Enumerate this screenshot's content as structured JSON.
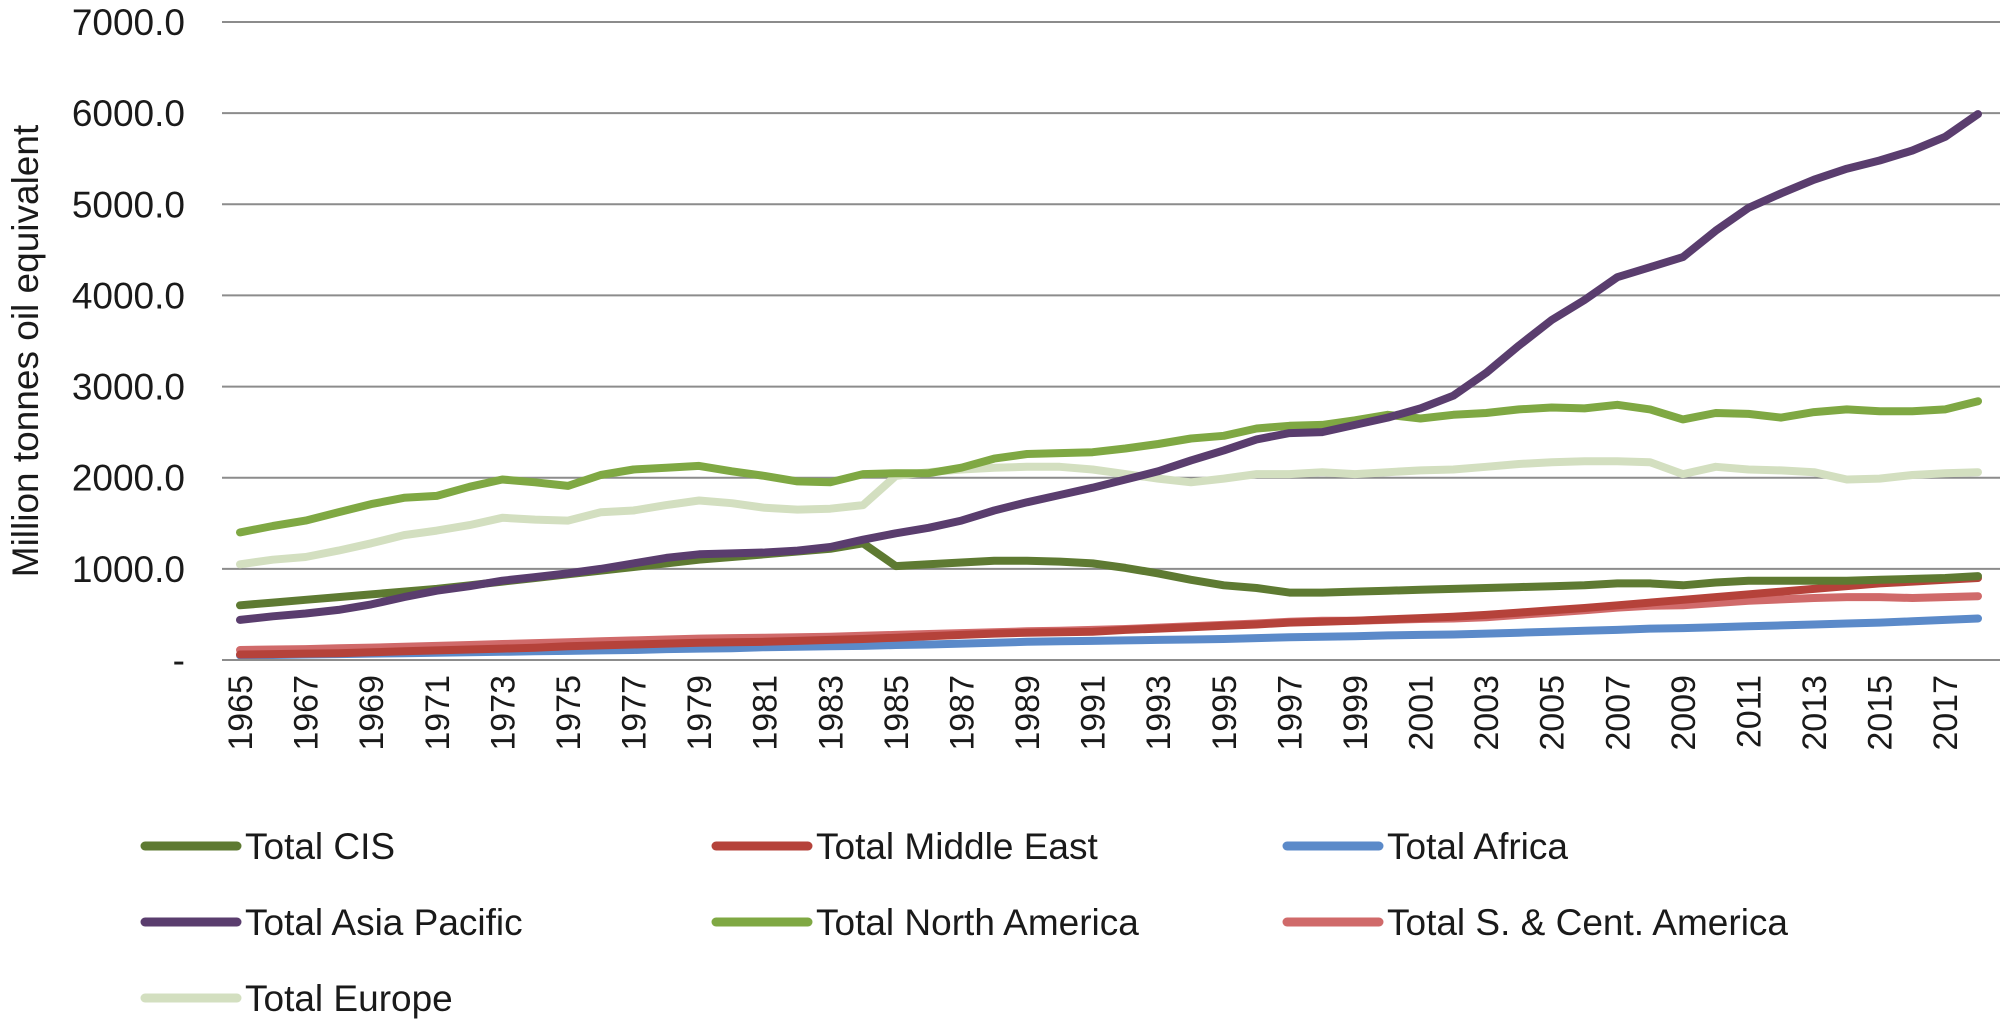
{
  "chart_data": {
    "type": "line",
    "xlabel": "",
    "ylabel": "Million tonnes oil equivalent",
    "ylim": [
      0,
      7000
    ],
    "y_ticks": [
      {
        "value": 0,
        "label": "-"
      },
      {
        "value": 1000,
        "label": "1000.0"
      },
      {
        "value": 2000,
        "label": "2000.0"
      },
      {
        "value": 3000,
        "label": "3000.0"
      },
      {
        "value": 4000,
        "label": "4000.0"
      },
      {
        "value": 5000,
        "label": "5000.0"
      },
      {
        "value": 6000,
        "label": "6000.0"
      },
      {
        "value": 7000,
        "label": "7000.0"
      }
    ],
    "x_tick_labels": [
      "1965",
      "1967",
      "1969",
      "1971",
      "1973",
      "1975",
      "1977",
      "1979",
      "1981",
      "1983",
      "1985",
      "1987",
      "1989",
      "1991",
      "1993",
      "1995",
      "1997",
      "1999",
      "2001",
      "2003",
      "2005",
      "2007",
      "2009",
      "2011",
      "2013",
      "2015",
      "2017"
    ],
    "grid": "horizontal",
    "legend_position": "bottom",
    "x": [
      1965,
      1966,
      1967,
      1968,
      1969,
      1970,
      1971,
      1972,
      1973,
      1974,
      1975,
      1976,
      1977,
      1978,
      1979,
      1980,
      1981,
      1982,
      1983,
      1984,
      1985,
      1986,
      1987,
      1988,
      1989,
      1990,
      1991,
      1992,
      1993,
      1994,
      1995,
      1996,
      1997,
      1998,
      1999,
      2000,
      2001,
      2002,
      2003,
      2004,
      2005,
      2006,
      2007,
      2008,
      2009,
      2010,
      2011,
      2012,
      2013,
      2014,
      2015,
      2016,
      2017,
      2018
    ],
    "series": [
      {
        "name": "Total CIS",
        "color": "#5e7a32",
        "values": [
          600,
          630,
          660,
          690,
          720,
          750,
          780,
          820,
          860,
          900,
          940,
          980,
          1020,
          1060,
          1100,
          1130,
          1160,
          1190,
          1220,
          1280,
          1030,
          1050,
          1070,
          1090,
          1090,
          1080,
          1060,
          1010,
          950,
          880,
          820,
          790,
          740,
          740,
          750,
          760,
          770,
          780,
          790,
          800,
          810,
          820,
          840,
          840,
          820,
          850,
          870,
          870,
          870,
          870,
          880,
          890,
          900,
          920
        ]
      },
      {
        "name": "Total Middle East",
        "color": "#b5423a",
        "values": [
          60,
          65,
          70,
          75,
          85,
          95,
          105,
          115,
          125,
          135,
          150,
          160,
          170,
          180,
          190,
          195,
          200,
          210,
          220,
          230,
          245,
          260,
          275,
          290,
          300,
          305,
          310,
          330,
          345,
          360,
          375,
          390,
          410,
          420,
          430,
          445,
          460,
          475,
          495,
          520,
          545,
          570,
          600,
          630,
          660,
          690,
          720,
          750,
          780,
          810,
          840,
          860,
          880,
          900
        ]
      },
      {
        "name": "Total Africa",
        "color": "#5b8ac9",
        "values": [
          50,
          55,
          60,
          65,
          70,
          75,
          80,
          85,
          90,
          95,
          100,
          105,
          110,
          120,
          125,
          130,
          140,
          145,
          150,
          155,
          165,
          170,
          180,
          190,
          200,
          205,
          210,
          215,
          220,
          225,
          230,
          240,
          250,
          255,
          260,
          270,
          275,
          280,
          290,
          300,
          310,
          320,
          330,
          345,
          350,
          360,
          370,
          380,
          390,
          400,
          410,
          425,
          440,
          455
        ]
      },
      {
        "name": "Total Asia Pacific",
        "color": "#5a3d6e",
        "values": [
          440,
          480,
          510,
          550,
          610,
          690,
          760,
          810,
          870,
          910,
          950,
          1000,
          1060,
          1120,
          1160,
          1170,
          1180,
          1200,
          1240,
          1320,
          1390,
          1450,
          1530,
          1640,
          1730,
          1810,
          1890,
          1980,
          2070,
          2190,
          2300,
          2420,
          2490,
          2500,
          2580,
          2660,
          2760,
          2900,
          3150,
          3450,
          3730,
          3950,
          4200,
          4310,
          4420,
          4710,
          4960,
          5120,
          5270,
          5390,
          5480,
          5590,
          5740,
          5990
        ]
      },
      {
        "name": "Total North America",
        "color": "#7fa843",
        "values": [
          1400,
          1470,
          1530,
          1620,
          1710,
          1780,
          1800,
          1900,
          1980,
          1950,
          1910,
          2030,
          2090,
          2110,
          2130,
          2070,
          2020,
          1960,
          1950,
          2040,
          2050,
          2050,
          2110,
          2210,
          2260,
          2270,
          2280,
          2320,
          2370,
          2430,
          2460,
          2540,
          2570,
          2580,
          2630,
          2690,
          2650,
          2690,
          2710,
          2750,
          2770,
          2760,
          2800,
          2750,
          2640,
          2710,
          2700,
          2660,
          2720,
          2750,
          2730,
          2730,
          2750,
          2840
        ]
      },
      {
        "name": "Total S. & Cent. America",
        "color": "#d06a6a",
        "values": [
          110,
          115,
          120,
          128,
          136,
          145,
          155,
          165,
          175,
          185,
          195,
          205,
          215,
          225,
          235,
          240,
          245,
          250,
          255,
          265,
          275,
          285,
          295,
          305,
          315,
          320,
          330,
          340,
          355,
          370,
          385,
          400,
          420,
          430,
          430,
          440,
          450,
          455,
          470,
          495,
          520,
          545,
          575,
          595,
          600,
          625,
          650,
          665,
          680,
          690,
          690,
          680,
          690,
          700
        ]
      },
      {
        "name": "Total Europe",
        "color": "#d3dfc0",
        "values": [
          1050,
          1100,
          1130,
          1200,
          1280,
          1370,
          1420,
          1480,
          1560,
          1540,
          1530,
          1620,
          1640,
          1700,
          1750,
          1720,
          1670,
          1650,
          1660,
          1700,
          2020,
          2060,
          2090,
          2110,
          2120,
          2120,
          2090,
          2040,
          1990,
          1950,
          1990,
          2040,
          2040,
          2060,
          2040,
          2060,
          2080,
          2090,
          2120,
          2150,
          2170,
          2180,
          2180,
          2170,
          2040,
          2120,
          2090,
          2080,
          2060,
          1980,
          1990,
          2030,
          2050,
          2060
        ]
      }
    ]
  }
}
